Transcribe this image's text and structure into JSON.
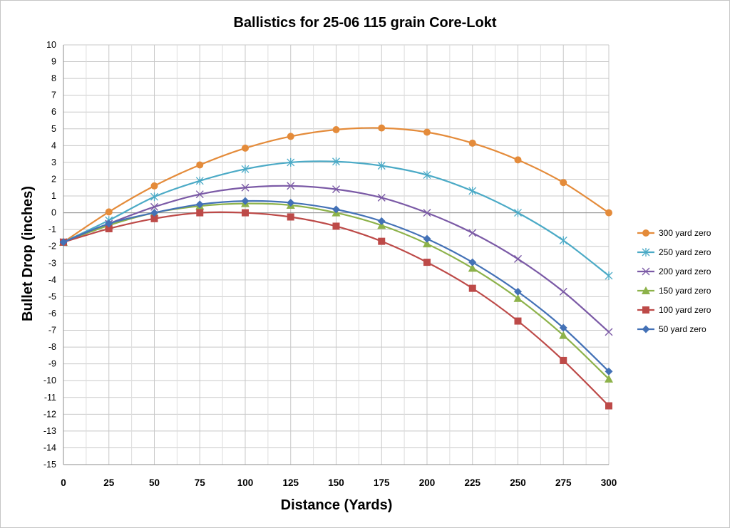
{
  "chart_data": {
    "type": "line",
    "title": "Ballistics for 25-06 115 grain Core-Lokt",
    "xlabel": "Distance (Yards)",
    "ylabel": "Bullet Drop (inches)",
    "xlim": [
      0,
      300
    ],
    "ylim": [
      -15,
      10
    ],
    "x_ticks": [
      "0",
      "25",
      "50",
      "75",
      "100",
      "125",
      "150",
      "175",
      "200",
      "225",
      "250",
      "275",
      "300"
    ],
    "y_ticks": [
      "10",
      "9",
      "8",
      "7",
      "6",
      "5",
      "4",
      "3",
      "2",
      "1",
      "0",
      "-1",
      "-2",
      "-3",
      "-4",
      "-5",
      "-6",
      "-7",
      "-8",
      "-9",
      "-10",
      "-11",
      "-12",
      "-13",
      "-14",
      "-15"
    ],
    "grid": true,
    "legend_position": "right",
    "x": [
      0,
      25,
      50,
      75,
      100,
      125,
      150,
      175,
      200,
      225,
      250,
      275,
      300
    ],
    "series": [
      {
        "name": "300 yard zero",
        "color": "#e48b3a",
        "marker": "circle",
        "values": [
          -1.75,
          0.05,
          1.6,
          2.85,
          3.85,
          4.55,
          4.95,
          5.05,
          4.8,
          4.15,
          3.15,
          1.8,
          0.0
        ]
      },
      {
        "name": "250 yard zero",
        "color": "#4baac6",
        "marker": "star",
        "values": [
          -1.75,
          -0.45,
          0.95,
          1.9,
          2.6,
          3.0,
          3.05,
          2.8,
          2.25,
          1.3,
          0.0,
          -1.65,
          -3.75
        ]
      },
      {
        "name": "200 yard zero",
        "color": "#7b5aa6",
        "marker": "x",
        "values": [
          -1.75,
          -0.65,
          0.35,
          1.1,
          1.5,
          1.6,
          1.4,
          0.9,
          0.0,
          -1.2,
          -2.75,
          -4.7,
          -7.1
        ]
      },
      {
        "name": "150 yard zero",
        "color": "#8db24a",
        "marker": "triangle",
        "values": [
          -1.75,
          -0.75,
          0.0,
          0.4,
          0.55,
          0.45,
          0.0,
          -0.75,
          -1.85,
          -3.3,
          -5.1,
          -7.3,
          -9.9
        ]
      },
      {
        "name": "100 yard zero",
        "color": "#bd4a48",
        "marker": "square",
        "values": [
          -1.75,
          -0.95,
          -0.35,
          0.0,
          0.0,
          -0.25,
          -0.8,
          -1.7,
          -2.95,
          -4.5,
          -6.45,
          -8.8,
          -11.5
        ]
      },
      {
        "name": "50 yard zero",
        "color": "#4371b6",
        "marker": "diamond",
        "values": [
          -1.75,
          -0.65,
          0.0,
          0.5,
          0.7,
          0.6,
          0.2,
          -0.5,
          -1.55,
          -2.95,
          -4.7,
          -6.85,
          -9.45
        ]
      }
    ]
  }
}
